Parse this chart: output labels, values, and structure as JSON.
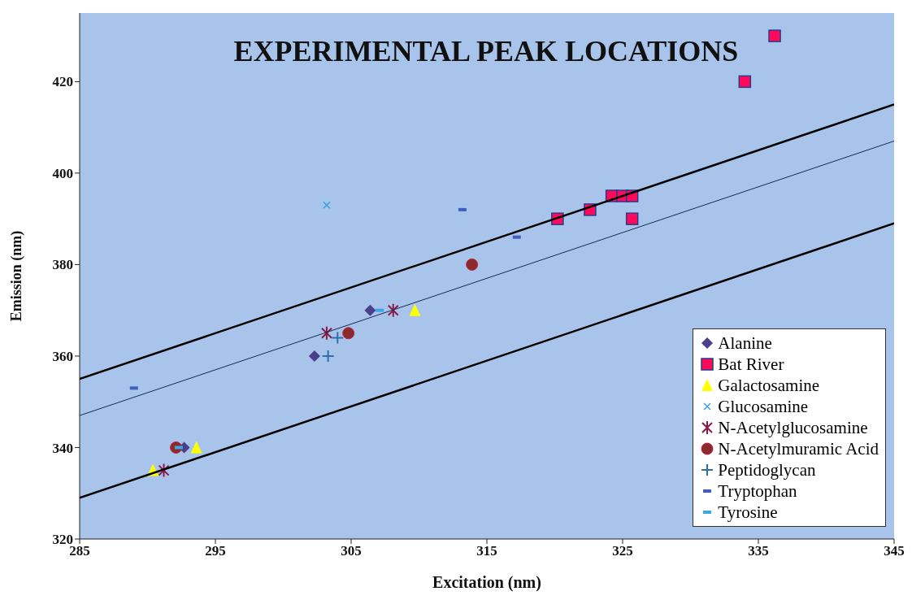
{
  "chart_data": {
    "type": "scatter",
    "title": "EXPERIMENTAL PEAK LOCATIONS",
    "xlabel": "Excitation (nm)",
    "ylabel": "Emission (nm)",
    "xlim": [
      285,
      345
    ],
    "xticks": [
      285,
      295,
      305,
      315,
      325,
      335,
      345
    ],
    "ylim": [
      320,
      435
    ],
    "yticks": [
      320,
      340,
      360,
      380,
      400,
      420
    ],
    "grid": false,
    "legend": "bottom right",
    "series": [
      {
        "name": "Alanine",
        "color": "#4b3f8c",
        "marker": "diamond",
        "x": [
          292.7,
          302.3,
          306.4
        ],
        "values": [
          340,
          360,
          370
        ]
      },
      {
        "name": "Bat River",
        "color": "#ff0a5a",
        "marker": "square",
        "x": [
          320.2,
          322.6,
          324.2,
          325.0,
          325.7,
          325.7,
          334.0,
          336.2
        ],
        "values": [
          390,
          392,
          395,
          395,
          395,
          390,
          420,
          430
        ]
      },
      {
        "name": "Galactosamine",
        "color": "#ffff00",
        "marker": "triangle",
        "x": [
          290.4,
          293.6,
          309.7
        ],
        "values": [
          335,
          340,
          370
        ]
      },
      {
        "name": "Glucosamine",
        "color": "#3aa0e0",
        "marker": "x",
        "x": [
          303.2
        ],
        "values": [
          393
        ]
      },
      {
        "name": "N-Acetylglucosamine",
        "color": "#8b1a4a",
        "marker": "cross",
        "x": [
          291.2,
          303.2,
          308.1
        ],
        "values": [
          335,
          365,
          370
        ]
      },
      {
        "name": "N-Acetylmuramic Acid",
        "color": "#8b2a2a",
        "marker": "circle",
        "x": [
          292.1,
          304.8,
          313.9
        ],
        "values": [
          340,
          365,
          380
        ]
      },
      {
        "name": "Peptidoglycan",
        "color": "#2f6fa8",
        "marker": "plus",
        "x": [
          303.3,
          304.0
        ],
        "values": [
          360,
          364
        ]
      },
      {
        "name": "Tryptophan",
        "color": "#3f5fbf",
        "x": [
          289.0,
          313.2,
          317.2
        ],
        "values": [
          353,
          392,
          386
        ]
      },
      {
        "name": "Tyrosine",
        "color": "#3aa8e8",
        "x": [
          292.3,
          307.1
        ],
        "values": [
          340,
          370
        ]
      },
      {
        "type": "line",
        "color": "#000000",
        "x": [
          285,
          345
        ],
        "values": [
          355,
          415
        ]
      },
      {
        "type": "line",
        "color": "#1a2a4a",
        "x": [
          285,
          345
        ],
        "values": [
          347,
          407
        ]
      },
      {
        "type": "line",
        "color": "#000000",
        "x": [
          285,
          345
        ],
        "values": [
          329,
          389
        ]
      }
    ]
  }
}
